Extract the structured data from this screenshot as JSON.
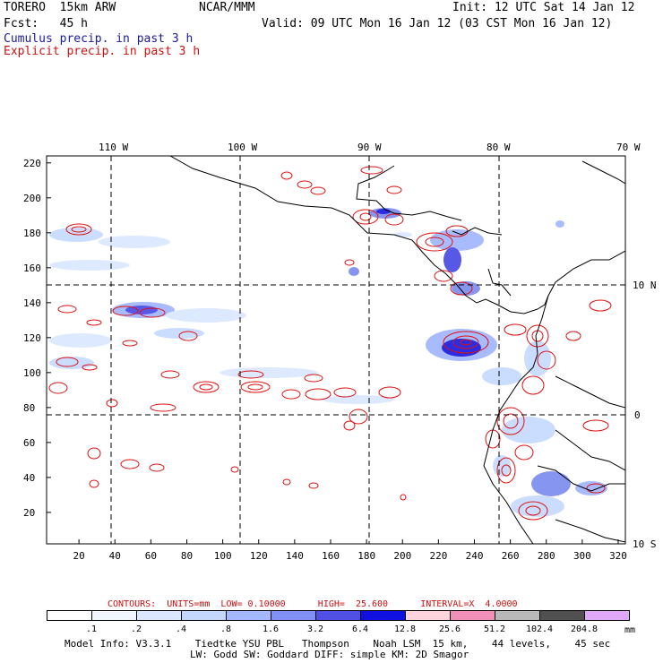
{
  "header": {
    "line1_left": "TORERO  15km ARW",
    "line1_mid": "NCAR/MMM",
    "line1_right": "Init: 12 UTC Sat 14 Jan 12",
    "line2_left": "Fcst:   45 h",
    "line2_right": "Valid: 09 UTC Mon 16 Jan 12 (03 CST Mon 16 Jan 12)",
    "legend_cumulus": "Cumulus precip. in past 3 h",
    "legend_explicit": "Explicit precip. in past 3 h"
  },
  "map": {
    "top_lon_labels": [
      "110 W",
      "100 W",
      "90 W",
      "80 W",
      "70 W"
    ],
    "right_lat_labels": [
      "10 N",
      "0",
      "10 S"
    ],
    "left_y_ticks": [
      "220",
      "200",
      "180",
      "160",
      "140",
      "120",
      "100",
      "80",
      "60",
      "40",
      "20"
    ],
    "bottom_x_ticks": [
      "20",
      "40",
      "60",
      "80",
      "100",
      "120",
      "140",
      "160",
      "180",
      "200",
      "220",
      "240",
      "260",
      "280",
      "300",
      "320"
    ],
    "colors": {
      "coastline": "#000000",
      "gridline": "#000000",
      "explicit_contour": "#e01010",
      "cumulus_light": "#c8dcff",
      "cumulus_mid": "#8090f0",
      "cumulus_dark": "#2020e0"
    }
  },
  "contour_info": {
    "text": "CONTOURS:  UNITS=mm  LOW= 0.10000      HIGH=  25.600      INTERVAL=X  4.0000"
  },
  "colorbar": {
    "units": "mm",
    "labels": [
      ".1",
      ".2",
      ".4",
      ".8",
      "1.6",
      "3.2",
      "6.4",
      "12.8",
      "25.6",
      "51.2",
      "102.4",
      "204.8"
    ],
    "colors": [
      "#ffffff",
      "#f0f5ff",
      "#dce8ff",
      "#c4d8ff",
      "#a4b8ff",
      "#8090f4",
      "#5050e6",
      "#1010e0",
      "#ffd4dc",
      "#f090b8",
      "#b8b8b8",
      "#505050",
      "#e0a8f8"
    ]
  },
  "footer": {
    "line1": "Model Info: V3.3.1    Tiedtke YSU PBL   Thompson    Noah LSM  15 km,    44 levels,    45 sec",
    "line2": "LW: Godd SW: Goddard DIFF: simple KM: 2D Smagor"
  }
}
